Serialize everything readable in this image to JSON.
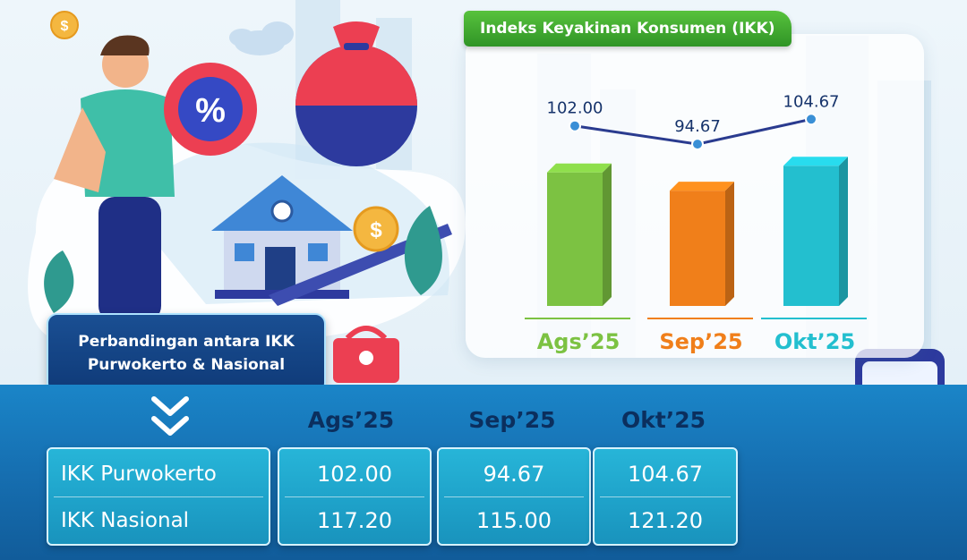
{
  "chart_data": {
    "type": "bar",
    "title": "Indeks Keyakinan Konsumen (IKK)",
    "categories": [
      "Ags’25",
      "Sep’25",
      "Okt’25"
    ],
    "values": [
      102.0,
      94.67,
      104.67
    ],
    "value_labels": [
      "102.00",
      "94.67",
      "104.67"
    ],
    "overlay_line": true,
    "bar_colors": [
      "#7cc242",
      "#f07f1a",
      "#23bfcf"
    ],
    "line_color": "#2a3b8f",
    "marker_color": "#3a8fd6"
  },
  "comparison": {
    "label_line1": "Perbandingan antara IKK",
    "label_line2": "Purwokerto & Nasional",
    "periods": [
      "Ags’25",
      "Sep’25",
      "Okt’25"
    ],
    "rows": [
      {
        "name": "IKK Purwokerto",
        "values": [
          "102.00",
          "94.67",
          "104.67"
        ]
      },
      {
        "name": "IKK Nasional",
        "values": [
          "117.20",
          "115.00",
          "121.20"
        ]
      }
    ]
  },
  "icons": {
    "percent_icon": "%",
    "dollar_coin_icon": "$"
  },
  "colors": {
    "title_green": "#3fae2f",
    "band_blue": "#166fb1",
    "cell_teal": "#1fa4cb",
    "header_navy": "#0b2f5e"
  }
}
